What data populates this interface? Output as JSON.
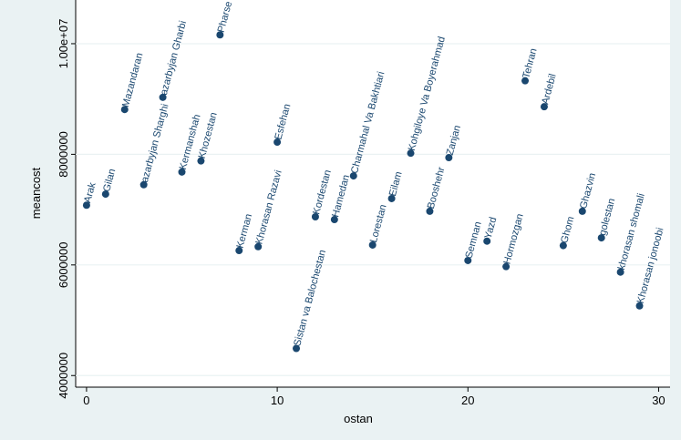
{
  "chart_data": {
    "type": "scatter",
    "x_label": "ostan",
    "y_label": "meancost",
    "labels": [
      "Arak",
      "Gilan",
      "Mazandaran",
      "azarbyjan Sharghi",
      "azarbyjan Gharbi",
      "Kermanshah",
      "Khozestan",
      "Pharse",
      "Kerman",
      "Khorasan Razavi",
      "Esfehan",
      "Sistan va Balochestan",
      "Kordestan",
      "Hamedan",
      "Charmahal Va Bakhtiari",
      "Lorestan",
      "Eilam",
      "Kohgiloye Va Boyerahmad",
      "Booshehr",
      "Zanjan",
      "Semnan",
      "Yazd",
      "Hormozgan",
      "Tehran",
      "Ardebil",
      "Ghom",
      "Ghazvin",
      "golestan",
      "khorasan shomali",
      "Khorasan jonoobi"
    ],
    "x": [
      0,
      1,
      2,
      3,
      4,
      5,
      6,
      7,
      8,
      9,
      10,
      11,
      12,
      13,
      14,
      15,
      16,
      17,
      18,
      19,
      20,
      21,
      22,
      23,
      24,
      25,
      26,
      27,
      28,
      29
    ],
    "values": [
      7080000,
      7280000,
      8810000,
      7450000,
      9030000,
      7680000,
      7880000,
      10160000,
      6260000,
      6330000,
      8220000,
      4490000,
      6870000,
      6820000,
      7610000,
      6360000,
      7200000,
      8020000,
      6970000,
      7940000,
      6080000,
      6430000,
      5970000,
      9330000,
      8860000,
      6350000,
      6970000,
      6490000,
      5870000,
      5260000
    ],
    "color": "#1a476f",
    "xlim": [
      -0.57,
      30.6
    ],
    "xticks": [
      0,
      10,
      20,
      30
    ],
    "ylim": [
      3790000,
      10790000
    ],
    "yticks": [
      4000000,
      6000000,
      8000000,
      {
        "value": 10000000,
        "label": "1.00e+07"
      }
    ],
    "grid": true
  }
}
